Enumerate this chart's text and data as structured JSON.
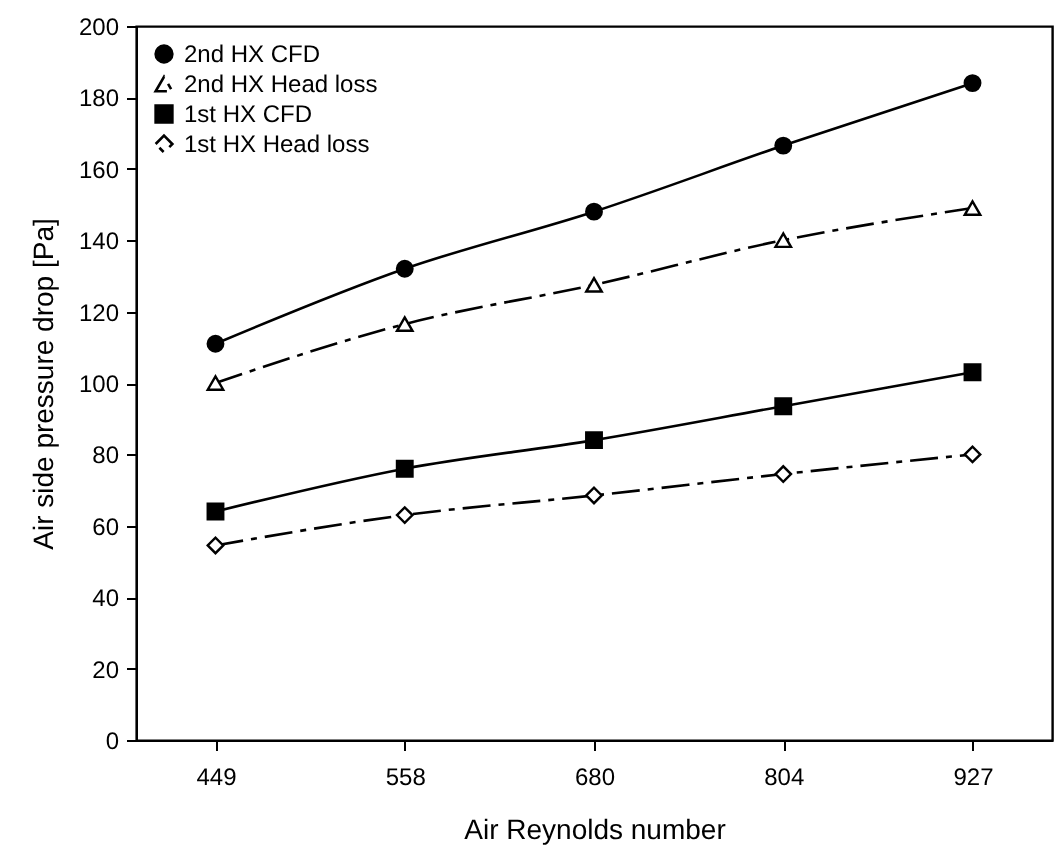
{
  "chart_data": {
    "type": "line",
    "xlabel": "Air Reynolds number",
    "ylabel": "Air side pressure drop [Pa]",
    "categories": [
      "449",
      "558",
      "680",
      "804",
      "927"
    ],
    "series": [
      {
        "name": "2nd HX CFD",
        "color": "#000000",
        "marker": "circle",
        "line_style": "solid",
        "values": [
          111,
          132,
          148,
          166.5,
          184
        ]
      },
      {
        "name": "2nd HX Head loss",
        "color": "#000000",
        "marker": "triangle",
        "line_style": "dashed",
        "values": [
          100,
          116.5,
          127.5,
          140,
          149
        ]
      },
      {
        "name": "1st HX CFD",
        "color": "#000000",
        "marker": "square",
        "line_style": "solid",
        "values": [
          64,
          76,
          84,
          93.5,
          103
        ]
      },
      {
        "name": "1st HX Head loss",
        "color": "#000000",
        "marker": "diamond",
        "line_style": "dashed",
        "values": [
          54.5,
          63,
          68.5,
          74.5,
          80
        ]
      }
    ],
    "ylim": [
      0,
      200
    ],
    "yticks": [
      0,
      20,
      40,
      60,
      80,
      100,
      120,
      140,
      160,
      180,
      200
    ],
    "grid": false,
    "legend": "top left"
  }
}
